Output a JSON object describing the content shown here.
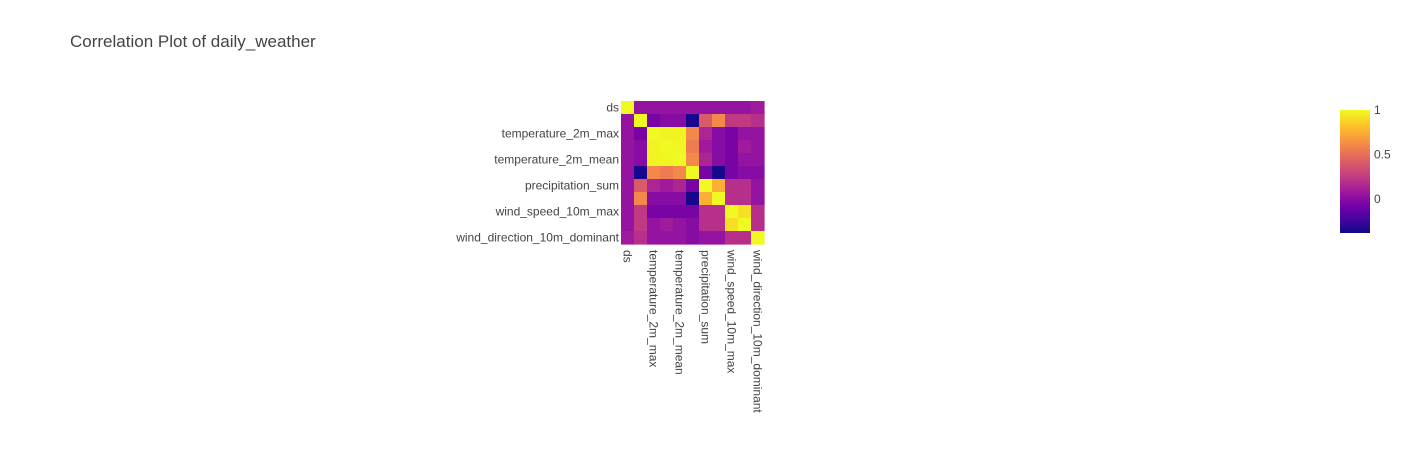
{
  "chart_data": {
    "type": "heatmap",
    "title": "Correlation Plot of daily_weather",
    "variables": [
      "ds",
      "",
      "temperature_2m_max",
      "",
      "temperature_2m_mean",
      "",
      "precipitation_sum",
      "",
      "wind_speed_10m_max",
      "",
      "wind_direction_10m_dominant"
    ],
    "y_tick_labels": [
      "ds",
      "temperature_2m_max",
      "temperature_2m_mean",
      "precipitation_sum",
      "wind_speed_10m_max",
      "wind_direction_10m_dominant"
    ],
    "x_tick_labels": [
      "ds",
      "temperature_2m_max",
      "temperature_2m_mean",
      "precipitation_sum",
      "wind_speed_10m_max",
      "wind_direction_10m_dominant"
    ],
    "z": [
      [
        1.0,
        0.05,
        0.05,
        0.05,
        0.05,
        0.05,
        0.05,
        0.05,
        0.05,
        0.05,
        0.1
      ],
      [
        0.05,
        1.0,
        -0.05,
        0.0,
        0.0,
        -0.35,
        0.4,
        0.6,
        0.25,
        0.25,
        0.2
      ],
      [
        0.05,
        -0.05,
        1.0,
        0.98,
        0.98,
        0.6,
        0.15,
        0.0,
        -0.05,
        0.05,
        0.05
      ],
      [
        0.05,
        0.0,
        0.98,
        1.0,
        0.99,
        0.55,
        0.1,
        0.0,
        -0.05,
        0.1,
        0.05
      ],
      [
        0.05,
        0.0,
        0.98,
        0.99,
        1.0,
        0.6,
        0.15,
        0.0,
        -0.05,
        0.05,
        0.05
      ],
      [
        0.05,
        -0.35,
        0.6,
        0.55,
        0.6,
        1.0,
        -0.05,
        -0.35,
        -0.05,
        0.0,
        0.0
      ],
      [
        0.05,
        0.4,
        0.15,
        0.1,
        0.15,
        -0.05,
        1.0,
        0.75,
        0.2,
        0.2,
        0.05
      ],
      [
        0.05,
        0.6,
        0.0,
        0.0,
        0.0,
        -0.35,
        0.75,
        1.0,
        0.2,
        0.2,
        0.05
      ],
      [
        0.05,
        0.25,
        -0.05,
        -0.05,
        -0.05,
        -0.05,
        0.2,
        0.2,
        1.0,
        0.92,
        0.2
      ],
      [
        0.05,
        0.25,
        0.05,
        0.1,
        0.05,
        0.0,
        0.2,
        0.2,
        0.92,
        1.0,
        0.2
      ],
      [
        0.1,
        0.2,
        0.05,
        0.05,
        0.05,
        0.0,
        0.05,
        0.05,
        0.2,
        0.2,
        1.0
      ]
    ],
    "zmin": -0.38,
    "zmax": 1.0,
    "colorscale": "plasma",
    "colorbar_ticks": [
      "1",
      "0.5",
      "0"
    ],
    "colorbar_tick_values": [
      1,
      0.5,
      0
    ]
  }
}
